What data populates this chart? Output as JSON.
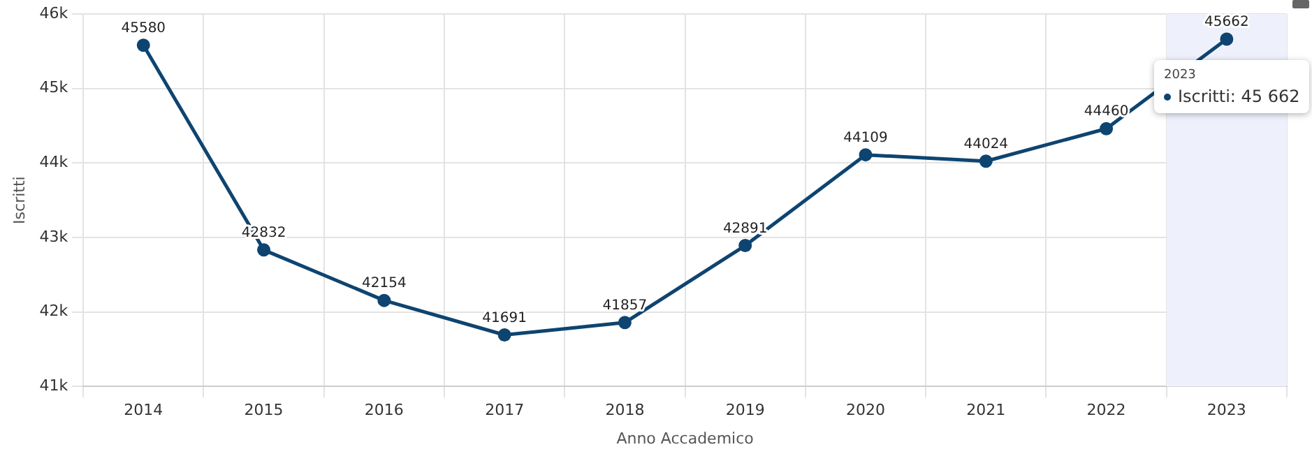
{
  "chart_data": {
    "type": "line",
    "xlabel": "Anno Accademico",
    "ylabel": "Iscritti",
    "categories": [
      "2014",
      "2015",
      "2016",
      "2017",
      "2018",
      "2019",
      "2020",
      "2021",
      "2022",
      "2023"
    ],
    "series": [
      {
        "name": "Iscritti",
        "color": "#0e4470",
        "values": [
          45580,
          42832,
          42154,
          41691,
          41857,
          42891,
          44109,
          44024,
          44460,
          45662
        ]
      }
    ],
    "ylim": [
      41000,
      46000
    ],
    "yticks": [
      {
        "value": 41000,
        "label": "41k"
      },
      {
        "value": 42000,
        "label": "42k"
      },
      {
        "value": 43000,
        "label": "43k"
      },
      {
        "value": 44000,
        "label": "44k"
      },
      {
        "value": 45000,
        "label": "45k"
      },
      {
        "value": 46000,
        "label": "46k"
      }
    ],
    "grid": true,
    "legend": "top right",
    "marker": "circle",
    "line_style": "solid",
    "data_labels": true,
    "bands": [
      {
        "axis": "x",
        "from": "2023",
        "to": "2023",
        "color": "#eef1fc"
      }
    ],
    "annotations": [
      "2023",
      ": 45 662"
    ]
  }
}
